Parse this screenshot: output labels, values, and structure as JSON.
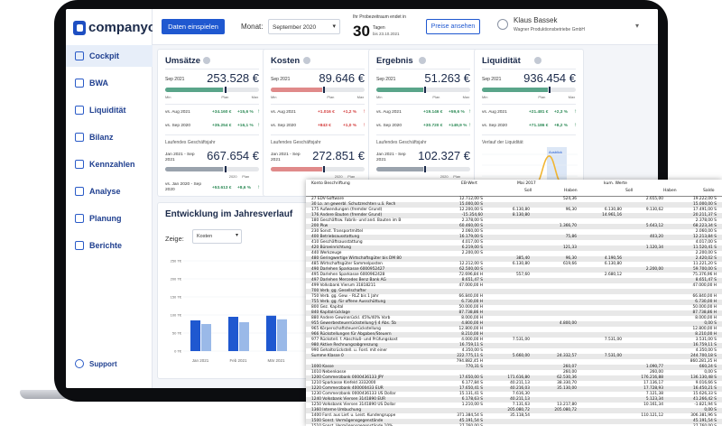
{
  "app": {
    "brand": "companyon"
  },
  "sidebar": {
    "items": [
      {
        "label": "Cockpit",
        "icon": "cockpit-icon"
      },
      {
        "label": "BWA",
        "icon": "magnifier-icon"
      },
      {
        "label": "Liquidität",
        "icon": "liquidity-icon"
      },
      {
        "label": "Bilanz",
        "icon": "balance-icon"
      },
      {
        "label": "Kennzahlen",
        "icon": "key-figures-icon"
      },
      {
        "label": "Analyse",
        "icon": "analysis-icon"
      },
      {
        "label": "Planung",
        "icon": "planning-icon"
      },
      {
        "label": "Berichte",
        "icon": "reports-icon"
      }
    ],
    "support": "Support"
  },
  "topbar": {
    "import_button": "Daten einspielen",
    "month_label": "Monat:",
    "month_value": "September 2020",
    "trial_label": "Ihr Probezeitraum endet in",
    "trial_days": "30",
    "trial_unit": "Tagen",
    "trial_date": "bis 23.10.2021",
    "prices_button": "Preise ansehen",
    "user_name": "Klaus Bassek",
    "user_company": "Wagner Produktionsbetriebe GmbH"
  },
  "colors": {
    "accent": "#1f58d0",
    "positive": "#2e8b57",
    "negative": "#d33b3b",
    "green_bar": "#5aa58a",
    "red_bar": "#e08a8a",
    "gray_bar": "#9aa3ad"
  },
  "kpis": [
    {
      "title": "Umsätze",
      "period": "Sep 2021",
      "value": "253.528 €",
      "bar": "green",
      "fill": 0.62,
      "cmp": [
        {
          "label": "vs. Aug 2021",
          "abs": "+34.160 €",
          "pct": "+15,6 %",
          "sign": "pos"
        },
        {
          "label": "vs. Sep 2020",
          "abs": "+35.254 €",
          "pct": "+16,1 %",
          "sign": "pos"
        }
      ],
      "ytd_label": "Laufendes Geschäftsjahr",
      "ytd_period": "Jan 2021 - Sep 2021",
      "ytd_value": "667.654 €",
      "ytd_cmp": {
        "label": "vs. Jan 2020 - Sep 2020",
        "abs": "+53.613 €",
        "pct": "+8,6 %",
        "sign": "pos"
      },
      "has_ytd_cmp": true
    },
    {
      "title": "Kosten",
      "period": "Sep 2021",
      "value": "89.646 €",
      "bar": "red",
      "fill": 0.55,
      "cmp": [
        {
          "label": "vs. Aug 2021",
          "abs": "+1.016 €",
          "pct": "+1,2 %",
          "sign": "neg"
        },
        {
          "label": "vs. Sep 2020",
          "abs": "+843 €",
          "pct": "+1,0 %",
          "sign": "neg"
        }
      ],
      "ytd_label": "Laufendes Geschäftsjahr",
      "ytd_period": "Jan 2021 - Sep 2021",
      "ytd_value": "272.851 €",
      "has_ytd_cmp": false
    },
    {
      "title": "Ergebnis",
      "period": "Sep 2021",
      "value": "51.263 €",
      "bar": "green",
      "fill": 0.5,
      "cmp": [
        {
          "label": "vs. Aug 2021",
          "abs": "+19.146 €",
          "pct": "+59,6 %",
          "sign": "pos"
        },
        {
          "label": "vs. Sep 2020",
          "abs": "+30.720 €",
          "pct": "+149,9 %",
          "sign": "pos"
        }
      ],
      "ytd_label": "Laufendes Geschäftsjahr",
      "ytd_period": "Jan 2021 - Sep 2021",
      "ytd_value": "102.327 €",
      "has_ytd_cmp": false
    },
    {
      "title": "Liquidität",
      "period": "Sep 2021",
      "value": "936.454 €",
      "bar": "green",
      "fill": 0.7,
      "cmp": [
        {
          "label": "vs. Aug 2021",
          "abs": "+21.481 €",
          "pct": "+2,3 %",
          "sign": "pos"
        },
        {
          "label": "vs. Sep 2020",
          "abs": "+71.186 €",
          "pct": "+8,2 %",
          "sign": "pos"
        }
      ],
      "ytd_label": "Verlauf der Liquidität",
      "ytd_period": "",
      "ytd_value": "",
      "has_ytd_cmp": false
    }
  ],
  "scale": {
    "min": "Min",
    "plan": "Plan",
    "max": "Max",
    "year": "2020"
  },
  "liquidity_tag": "Ausblick",
  "development": {
    "title": "Entwicklung im Jahresverlauf",
    "show_label": "Zeige:",
    "show_value": "Kosten",
    "chart_data": {
      "type": "bar",
      "categories": [
        "Jan 2021",
        "Feb 2021",
        "Mär 2021"
      ],
      "yticks": [
        "250 T€",
        "200 T€",
        "150 T€",
        "100 T€",
        "50 T€",
        "0 T€"
      ],
      "series": [
        {
          "values": [
            85,
            95,
            98
          ]
        },
        {
          "values": [
            75,
            80,
            88
          ]
        }
      ]
    }
  },
  "sheet": {
    "headers": [
      "Konto Beschriftung",
      "EB-Wert",
      "Mai 2017",
      "Soll",
      "Haben",
      "kum. Werte",
      "Soll",
      "Haben",
      "Saldo"
    ],
    "rows": [
      [
        "27 EDV-Software",
        "12.712,00 S",
        "",
        "524,36",
        "",
        "2.655,00",
        "",
        "19.222,00 S"
      ],
      [
        "30 Lo. an gewerbl. Schutzrechten u.ä. Rech",
        "15.000,00 S",
        "",
        "",
        "",
        "",
        "",
        "15.000,00 S"
      ],
      [
        "175 Aufwendungen (fremder Grund)",
        "12.200,00 S",
        "6.130,80",
        "96,30",
        "6.130,80",
        "9.130,62",
        "",
        "17.491,00 S"
      ],
      [
        "176 Andere Bauten (fremder Grund)",
        "-15.354,60",
        "8.130,80",
        "",
        "14.961,16",
        "",
        "",
        "20.211,37 S"
      ],
      [
        "180 Geschäftsw. Fabrik- und and. Bauten im B",
        "2.378,00 S",
        "",
        "",
        "",
        "",
        "",
        "2.378,00 S"
      ],
      [
        "200 Pkw",
        "60.460,00 S",
        "",
        "1.366,70",
        "",
        "5.643,12",
        "",
        "68.223,34 S"
      ],
      [
        "230 Sonst. Transportmittel",
        "2.060,00 S",
        "",
        "",
        "",
        "",
        "",
        "2.060,00 S"
      ],
      [
        "400 Betriebsausstattung",
        "16.179,00 S",
        "",
        "75,86",
        "",
        "403,20",
        "",
        "12.213,84 S"
      ],
      [
        "410 Geschäftsausstattung",
        "4.017,00 S",
        "",
        "",
        "",
        "",
        "",
        "4.017,00 S"
      ],
      [
        "420 Büroeinrichtung",
        "6.219,00 S",
        "",
        "121,33",
        "",
        "1.120,34",
        "",
        "11.520,41 S"
      ],
      [
        "440 Werkzeuge",
        "2.200,00 S",
        "",
        "",
        "",
        "",
        "",
        "2.200,00 S"
      ],
      [
        "480 Geringwertige Wirtschaftsgüter bis DM 80",
        "",
        "385,40",
        "96,30",
        "4.190,56",
        "",
        "",
        "2.420,02 S"
      ],
      [
        "485 Wirtschaftsgüter Sammelposten",
        "12.212,00 S",
        "6.130,80",
        "619,66",
        "6.130,80",
        "",
        "",
        "11.221,20 S"
      ],
      [
        "490 Darlehen Sparkasse 6000952427",
        "62.500,00 S",
        "",
        "",
        "",
        "2.200,00",
        "",
        "59.700,00 S"
      ],
      [
        "495 Darlehen Sparkasse 6000962428",
        "72.696,84 H",
        "557,60",
        "",
        "2.680,12",
        "",
        "",
        "75.376,96 H"
      ],
      [
        "497 Darlehen Mercedes Benz Bank AG",
        "8.651,47 S",
        "",
        "",
        "",
        "",
        "",
        "8.651,47 S"
      ],
      [
        "499 Volksbank Vierum 31818211",
        "47.000,00 H",
        "",
        "",
        "",
        "",
        "",
        "47.000,00 H"
      ],
      [
        "700 Verb. gg. Gesellschafter",
        "",
        "",
        "",
        "",
        "",
        "",
        ""
      ],
      [
        "750 Verb. gg. Gew. - RLZ bis 1 Jahr",
        "66.840,00 H",
        "",
        "",
        "",
        "",
        "",
        "66.840,00 H"
      ],
      [
        "755 Verb. gg. für offene Ausschüttung",
        "6.730,00 H",
        "",
        "",
        "",
        "",
        "",
        "6.730,00 H"
      ],
      [
        "800 Gez. Kapital",
        "50.000,00 H",
        "",
        "",
        "",
        "",
        "",
        "50.000,00 H"
      ],
      [
        "840 Kapitalrücklage",
        "87.738,86 H",
        "",
        "",
        "",
        "",
        "",
        "87.738,86 H"
      ],
      [
        "880 Andere Gewinnrückl. 45%/40% Vorb",
        "8.000,00 H",
        "",
        "",
        "",
        "",
        "",
        "8.000,00 H"
      ],
      [
        "955 Gewerbesteuerrückstellung § 4 Abs. 5b",
        "4.800,00 H",
        "",
        "4.800,00",
        "",
        "",
        "",
        "0,00 S"
      ],
      [
        "965 Körperschaftsteuerrückstellung",
        "12.800,00 H",
        "",
        "",
        "",
        "",
        "",
        "12.800,00 H"
      ],
      [
        "966 Rückstellungen für Abgaben/Steuern",
        "8.210,00 H",
        "",
        "",
        "",
        "",
        "",
        "8.210,00 H"
      ],
      [
        "977 Rückstell. f. Abschluß- und Prüfungskost",
        "4.000,00 H",
        "7.531,00",
        "",
        "7.531,00",
        "",
        "",
        "3.531,00 S"
      ],
      [
        "980 Aktive Rechnungsabgrenzung",
        "16.759,11 S",
        "",
        "",
        "",
        "",
        "",
        "16.759,11 S"
      ],
      [
        "990 Gehaltsrückstell. u. Ford. mit einer",
        "4.350,00 S",
        "",
        "",
        "",
        "",
        "",
        "4.350,00 S"
      ],
      [
        "Summe Klasse 0",
        "222.775,11 S",
        "5.660,00",
        "24.332,57",
        "7.531,00",
        "",
        "",
        "244.700,18 S"
      ],
      [
        "",
        "794.882,45 H",
        "",
        "",
        "",
        "",
        "",
        "860.281,35 H"
      ],
      [
        "1000 Kasse",
        "770,31 S",
        "",
        "260,07",
        "",
        "1.090,77",
        "",
        "660,24 S"
      ],
      [
        "1010 Nebenkasse",
        "",
        "",
        "260,00",
        "",
        "260,00",
        "",
        "0,00 S"
      ],
      [
        "1200 Commerzbank 0000436133 JPY",
        "17.650,00 S",
        "171.616,80",
        "62.530,36",
        "",
        "176.216,88",
        "",
        "136.130,48 S"
      ],
      [
        "1210 Sparkasse Krefeld 3332000",
        "6.177,84 S",
        "40.211,13",
        "38.330,70",
        "",
        "17.136,17",
        "",
        "9.016,66 S"
      ],
      [
        "1220 Commerzbank 400000433 EUR",
        "17.650,41 S",
        "40.216,03",
        "35.130,00",
        "",
        "17.728,93",
        "",
        "16.450,21 S"
      ],
      [
        "1230 Commerzbank 0000436133 US Dollar",
        "15.131,41 S",
        "7.616,30",
        "",
        "",
        "7.121,38",
        "",
        "15.626,33 S"
      ],
      [
        "1240 Volksbank Viersen 3141890 EUR",
        "6.178,63 S",
        "40.211,13",
        "",
        "",
        "5.123,34",
        "",
        "41.266,42 S"
      ],
      [
        "1250 Volksbank Viersen 3141890 US Dollar",
        "1.210,00 S",
        "7.131,63",
        "13.217,80",
        "",
        "10.161,34",
        "",
        "-1.821,94 S"
      ],
      [
        "1360 Interne Umbuchung",
        "",
        "205.080,72",
        "205.080,72",
        "",
        "",
        "",
        "0,00 S"
      ],
      [
        "1400 Ford. aus Lief. u. Leist. Kundengruppe",
        "371.384,54 S",
        "35.118,54",
        "",
        "",
        "110.121,12",
        "",
        "306.381,96 S"
      ],
      [
        "1500 Sonst. Vermögensgegenstände",
        "45.191,54 S",
        "",
        "",
        "",
        "",
        "",
        "45.191,54 S"
      ],
      [
        "1510 Sonst. Vermögensgegenstände 10%",
        "27.760,00 S",
        "",
        "",
        "",
        "",
        "",
        "27.760,00 S"
      ],
      [
        "1520 Reisekosten Jansen",
        "",
        "",
        "",
        "",
        "",
        "",
        "81,40 S"
      ],
      [
        "1533 Reisekosten M. Aldiers",
        "4.582,99 S",
        "",
        "",
        "",
        "",
        "",
        "3.900,00 S"
      ]
    ]
  }
}
